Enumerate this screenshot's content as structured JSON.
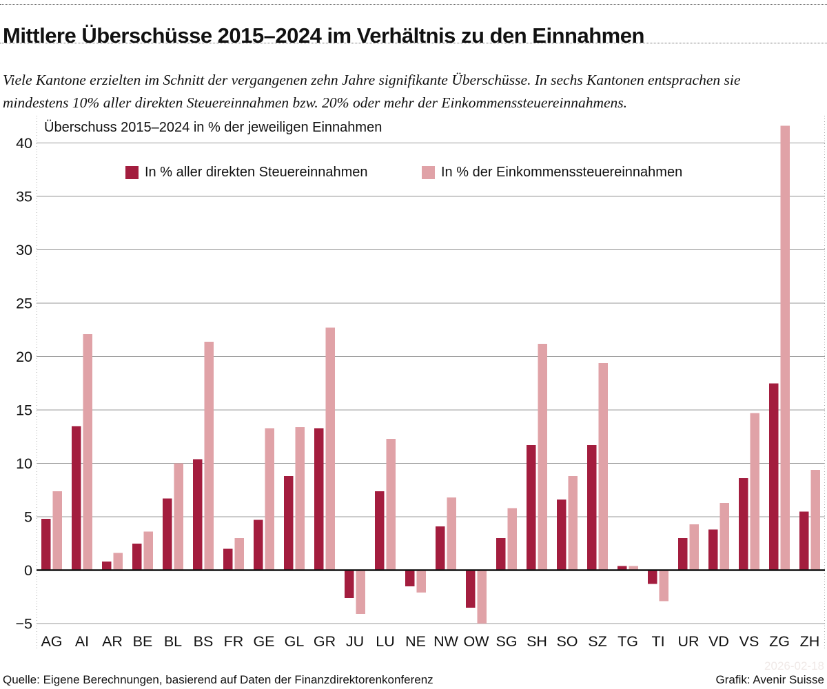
{
  "page": {
    "title": "Mittlere Überschüsse 2015–2024 im Verhältnis zu den Einnahmen",
    "subtitle": "Viele Kantone erzielten im Schnitt der vergangenen zehn Jahre signifikante Überschüsse. In sechs Kantonen entsprachen sie mindestens 10% aller direkten Steuereinnahmen bzw. 20% oder mehr der Einkommenssteuereinnahmens.",
    "footer_source": "Quelle: Eigene Berechnungen, basierend auf Daten der Finanzdirektorenkonferenz",
    "footer_credit": "Grafik: Avenir Suisse",
    "watermark": "2026-02-18"
  },
  "colors": {
    "direct": "#a31d3e",
    "income": "#e0a2a7",
    "grid": "#999999",
    "zero_line": "#111111",
    "dotted_border": "#aaaaaa"
  },
  "chart_data": {
    "type": "bar",
    "title": "Überschuss 2015–2024 in % der jeweiligen Einnahmen",
    "categories": [
      "AG",
      "AI",
      "AR",
      "BE",
      "BL",
      "BS",
      "FR",
      "GE",
      "GL",
      "GR",
      "JU",
      "LU",
      "NE",
      "NW",
      "OW",
      "SG",
      "SH",
      "SO",
      "SZ",
      "TG",
      "TI",
      "UR",
      "VD",
      "VS",
      "ZG",
      "ZH"
    ],
    "series": [
      {
        "name": "In % aller direkten Steuereinnahmen",
        "color": "#a31d3e",
        "values": [
          4.8,
          13.5,
          0.8,
          2.5,
          6.7,
          10.4,
          2.0,
          4.7,
          8.8,
          13.3,
          -2.6,
          7.4,
          -1.5,
          4.1,
          -3.5,
          3.0,
          11.7,
          6.6,
          11.7,
          0.4,
          -1.3,
          3.0,
          3.8,
          8.6,
          17.5,
          5.5
        ]
      },
      {
        "name": "In % der Einkommenssteuereinnahmen",
        "color": "#e0a2a7",
        "values": [
          7.4,
          22.1,
          1.6,
          3.6,
          10.0,
          21.4,
          3.0,
          13.3,
          13.4,
          22.7,
          -4.1,
          12.3,
          -2.1,
          6.8,
          -5.0,
          5.8,
          21.2,
          8.8,
          19.4,
          0.4,
          -2.9,
          4.3,
          6.3,
          14.7,
          41.6,
          9.4
        ]
      }
    ],
    "ylim": [
      -5,
      42
    ],
    "yticks": [
      40,
      35,
      30,
      25,
      20,
      15,
      10,
      5,
      0,
      -5
    ],
    "grid": true,
    "legend_position": "top"
  }
}
